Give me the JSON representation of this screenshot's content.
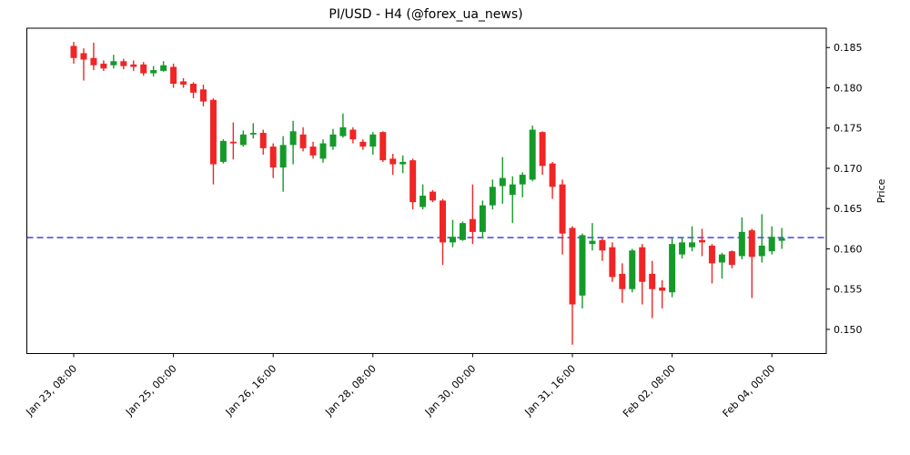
{
  "chart": {
    "title": "PI/USD - H4 (@forex_ua_news)",
    "y_axis_label": "Price"
  },
  "chart_data": {
    "type": "candlestick",
    "symbol": "PI/USD",
    "timeframe": "H4",
    "source_handle": "@forex_ua_news",
    "up_color": "#159a29",
    "down_color": "#f02525",
    "hline": {
      "price": 0.1614,
      "color": "#0000e6",
      "style": "dashed"
    },
    "ylim": [
      0.147,
      0.1874
    ],
    "grid": false,
    "y_ticks": [
      {
        "v": 0.185,
        "label": "0.185"
      },
      {
        "v": 0.18,
        "label": "0.180"
      },
      {
        "v": 0.175,
        "label": "0.175"
      },
      {
        "v": 0.17,
        "label": "0.170"
      },
      {
        "v": 0.165,
        "label": "0.165"
      },
      {
        "v": 0.16,
        "label": "0.160"
      },
      {
        "v": 0.155,
        "label": "0.155"
      },
      {
        "v": 0.15,
        "label": "0.150"
      }
    ],
    "x_ticks": [
      {
        "index": 0,
        "label": "Jan 23, 08:00"
      },
      {
        "index": 10,
        "label": "Jan 25, 00:00"
      },
      {
        "index": 20,
        "label": "Jan 26, 16:00"
      },
      {
        "index": 30,
        "label": "Jan 28, 08:00"
      },
      {
        "index": 40,
        "label": "Jan 30, 00:00"
      },
      {
        "index": 50,
        "label": "Jan 31, 16:00"
      },
      {
        "index": 60,
        "label": "Feb 02, 08:00"
      },
      {
        "index": 70,
        "label": "Feb 04, 00:00"
      }
    ],
    "ohlc": [
      [
        0.1852,
        0.1857,
        0.183,
        0.1837
      ],
      [
        0.1843,
        0.1849,
        0.1809,
        0.1835
      ],
      [
        0.1837,
        0.1856,
        0.1822,
        0.1828
      ],
      [
        0.183,
        0.1834,
        0.1821,
        0.1824
      ],
      [
        0.1828,
        0.1841,
        0.1824,
        0.1833
      ],
      [
        0.1833,
        0.1836,
        0.1823,
        0.1827
      ],
      [
        0.1829,
        0.1834,
        0.1821,
        0.1826
      ],
      [
        0.1829,
        0.1832,
        0.1815,
        0.1818
      ],
      [
        0.1818,
        0.1827,
        0.1814,
        0.1822
      ],
      [
        0.1821,
        0.1833,
        0.182,
        0.1828
      ],
      [
        0.1826,
        0.183,
        0.18,
        0.1805
      ],
      [
        0.1808,
        0.1812,
        0.18,
        0.1804
      ],
      [
        0.1805,
        0.1807,
        0.1787,
        0.1794
      ],
      [
        0.1798,
        0.1804,
        0.1777,
        0.1783
      ],
      [
        0.1785,
        0.1787,
        0.168,
        0.1705
      ],
      [
        0.1708,
        0.1736,
        0.1706,
        0.1734
      ],
      [
        0.1733,
        0.1757,
        0.1711,
        0.1731
      ],
      [
        0.1729,
        0.1747,
        0.1727,
        0.1742
      ],
      [
        0.1742,
        0.1756,
        0.1737,
        0.1744
      ],
      [
        0.1744,
        0.1748,
        0.1717,
        0.1725
      ],
      [
        0.1727,
        0.1731,
        0.1688,
        0.1701
      ],
      [
        0.1701,
        0.174,
        0.1671,
        0.1729
      ],
      [
        0.1729,
        0.1759,
        0.1705,
        0.1746
      ],
      [
        0.1742,
        0.1751,
        0.1721,
        0.1725
      ],
      [
        0.1727,
        0.1733,
        0.1712,
        0.1716
      ],
      [
        0.1712,
        0.1736,
        0.1707,
        0.1731
      ],
      [
        0.1727,
        0.1749,
        0.1723,
        0.1742
      ],
      [
        0.174,
        0.1768,
        0.1738,
        0.1751
      ],
      [
        0.1748,
        0.1751,
        0.1731,
        0.1736
      ],
      [
        0.1733,
        0.1736,
        0.1723,
        0.1727
      ],
      [
        0.1727,
        0.1745,
        0.1717,
        0.1742
      ],
      [
        0.1745,
        0.1746,
        0.1708,
        0.171
      ],
      [
        0.1712,
        0.1718,
        0.1692,
        0.1705
      ],
      [
        0.1705,
        0.1716,
        0.1694,
        0.1708
      ],
      [
        0.171,
        0.1712,
        0.1649,
        0.1658
      ],
      [
        0.1652,
        0.168,
        0.1649,
        0.1666
      ],
      [
        0.1671,
        0.1673,
        0.1658,
        0.166
      ],
      [
        0.166,
        0.1662,
        0.158,
        0.1608
      ],
      [
        0.1608,
        0.1636,
        0.1602,
        0.1615
      ],
      [
        0.1611,
        0.1634,
        0.161,
        0.1632
      ],
      [
        0.1637,
        0.168,
        0.1606,
        0.1621
      ],
      [
        0.1621,
        0.166,
        0.1613,
        0.1654
      ],
      [
        0.1654,
        0.1686,
        0.1649,
        0.1677
      ],
      [
        0.1678,
        0.1714,
        0.1656,
        0.1688
      ],
      [
        0.1667,
        0.169,
        0.1632,
        0.168
      ],
      [
        0.168,
        0.1695,
        0.1664,
        0.1692
      ],
      [
        0.1686,
        0.1753,
        0.1684,
        0.1748
      ],
      [
        0.1745,
        0.1746,
        0.1692,
        0.1703
      ],
      [
        0.1706,
        0.1708,
        0.1662,
        0.1677
      ],
      [
        0.168,
        0.1686,
        0.1593,
        0.1619
      ],
      [
        0.1626,
        0.1628,
        0.1481,
        0.1531
      ],
      [
        0.1542,
        0.1619,
        0.1526,
        0.1617
      ],
      [
        0.1606,
        0.1632,
        0.1598,
        0.161
      ],
      [
        0.1611,
        0.1613,
        0.1585,
        0.1598
      ],
      [
        0.1602,
        0.1608,
        0.1559,
        0.1565
      ],
      [
        0.1569,
        0.1582,
        0.1533,
        0.155
      ],
      [
        0.155,
        0.16,
        0.1546,
        0.1598
      ],
      [
        0.1602,
        0.1606,
        0.1531,
        0.1559
      ],
      [
        0.1569,
        0.1585,
        0.1514,
        0.155
      ],
      [
        0.1552,
        0.1561,
        0.1526,
        0.1548
      ],
      [
        0.1546,
        0.1613,
        0.154,
        0.1606
      ],
      [
        0.1593,
        0.1615,
        0.1588,
        0.1608
      ],
      [
        0.1602,
        0.1628,
        0.1597,
        0.1608
      ],
      [
        0.1611,
        0.1625,
        0.1591,
        0.1608
      ],
      [
        0.1604,
        0.1606,
        0.1557,
        0.1582
      ],
      [
        0.1583,
        0.1595,
        0.1563,
        0.1593
      ],
      [
        0.1597,
        0.1598,
        0.1576,
        0.158
      ],
      [
        0.1591,
        0.1639,
        0.1587,
        0.1621
      ],
      [
        0.1623,
        0.1625,
        0.1539,
        0.159
      ],
      [
        0.1591,
        0.1643,
        0.1583,
        0.1604
      ],
      [
        0.1597,
        0.1628,
        0.1593,
        0.1615
      ],
      [
        0.161,
        0.1626,
        0.16,
        0.1613
      ]
    ]
  }
}
